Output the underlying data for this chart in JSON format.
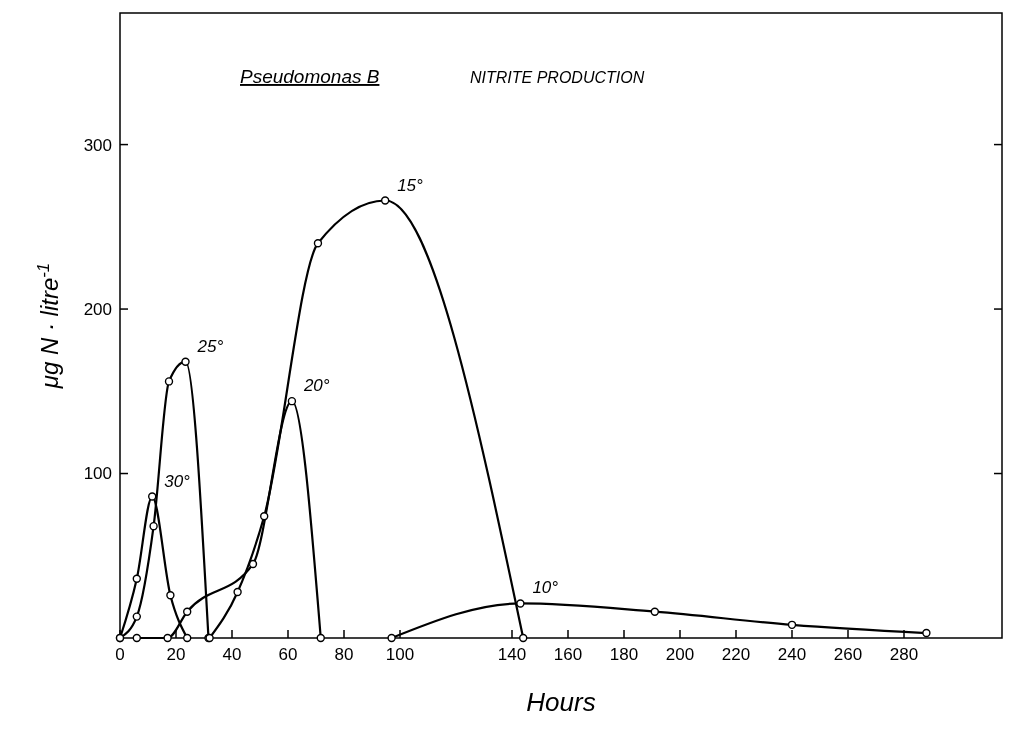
{
  "chart_data": {
    "type": "line",
    "title": "Pseudomonas B",
    "subtitle": "NITRITE PRODUCTION",
    "xlabel": "Hours",
    "ylabel": "μg N · litre$^{-1}$",
    "xlim": [
      0,
      315
    ],
    "xticks": [
      0,
      20,
      40,
      60,
      80,
      100,
      140,
      160,
      180,
      200,
      220,
      240,
      260,
      280
    ],
    "ylim": [
      0,
      380
    ],
    "yticks": [
      100,
      200,
      300
    ],
    "marker": "circle",
    "legend": false,
    "grid": false,
    "series": [
      {
        "name": "30°",
        "color": "#000000",
        "x": [
          0,
          6,
          11.5,
          18,
          24
        ],
        "values": [
          0,
          36,
          86,
          26,
          0
        ]
      },
      {
        "name": "25°",
        "color": "#000000",
        "x": [
          0,
          6,
          12,
          17.5,
          23.4,
          31.6
        ],
        "values": [
          0,
          13,
          68,
          156,
          168,
          0
        ]
      },
      {
        "name": "20°",
        "color": "#000000",
        "x": [
          6,
          17,
          24,
          47.5,
          61.4,
          71.7
        ],
        "values": [
          0,
          0,
          16,
          45,
          144,
          0
        ]
      },
      {
        "name": "15°",
        "color": "#000000",
        "x": [
          32,
          42,
          51.5,
          70.7,
          94.7,
          144
        ],
        "values": [
          0,
          28,
          74,
          240,
          266,
          0
        ]
      },
      {
        "name": "10°",
        "color": "#000000",
        "x": [
          97,
          143,
          191,
          240,
          288
        ],
        "values": [
          0,
          21,
          16,
          8,
          3
        ]
      }
    ]
  }
}
